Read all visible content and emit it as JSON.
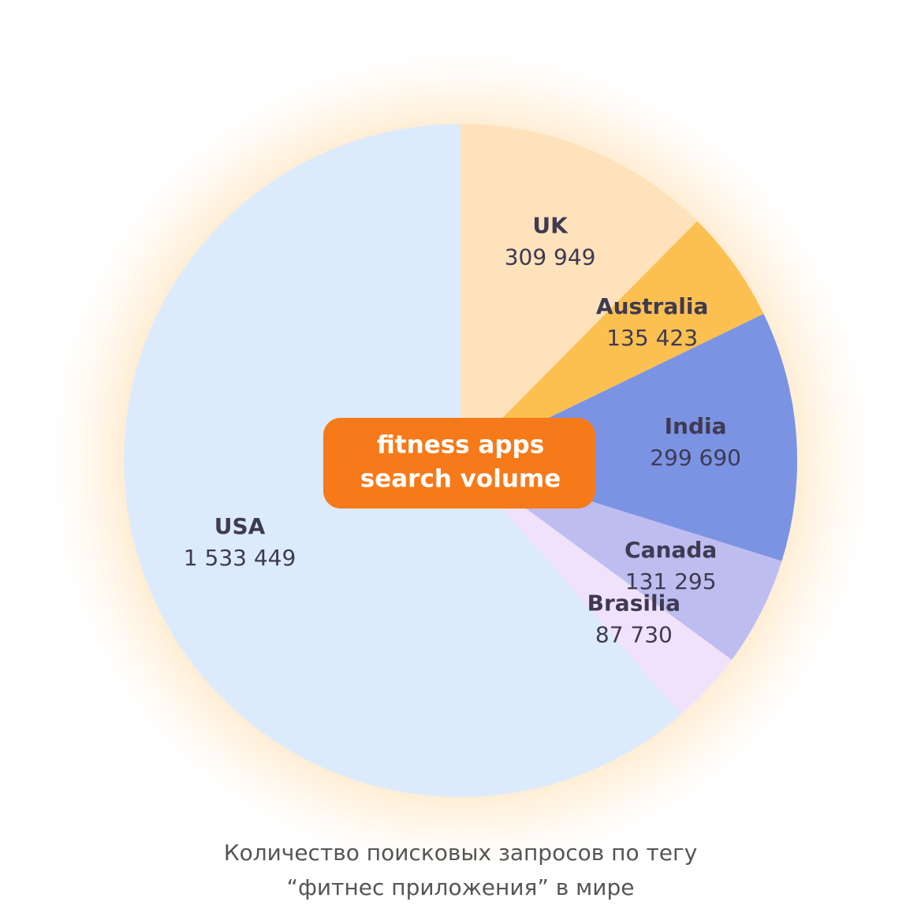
{
  "chart_data": {
    "type": "pie",
    "title_lines": [
      "fitness apps",
      "search volume"
    ],
    "caption_lines": [
      "Количество поисковых запросов по тегу",
      "“фитнес приложения” в мире"
    ],
    "categories": [
      "UK",
      "Australia",
      "India",
      "Canada",
      "Brasilia",
      "USA"
    ],
    "values": [
      309949,
      135423,
      299690,
      131295,
      87730,
      1533449
    ],
    "value_labels": [
      "309 949",
      "135 423",
      "299 690",
      "131 295",
      "87 730",
      "1 533 449"
    ],
    "colors": [
      "#fde2bc",
      "#fcc050",
      "#7b93e3",
      "#bdbdf0",
      "#f0e2fb",
      "#dcebfc"
    ]
  }
}
